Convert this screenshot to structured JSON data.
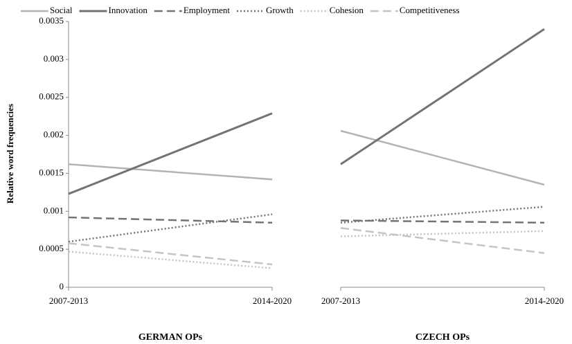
{
  "chart_data": {
    "type": "line",
    "ylabel": "Relative word frequencies",
    "ylim": [
      0,
      0.0035
    ],
    "yticks": [
      0,
      0.0005,
      0.001,
      0.0015,
      0.002,
      0.0025,
      0.003,
      0.0035
    ],
    "series": [
      {
        "name": "Social",
        "color": "#b3b3b3",
        "dash": "solid"
      },
      {
        "name": "Innovation",
        "color": "#737373",
        "dash": "solid"
      },
      {
        "name": "Employment",
        "color": "#737373",
        "dash": "dashed"
      },
      {
        "name": "Growth",
        "color": "#737373",
        "dash": "dotted"
      },
      {
        "name": "Cohesion",
        "color": "#c4c4c4",
        "dash": "dotted"
      },
      {
        "name": "Competitiveness",
        "color": "#c4c4c4",
        "dash": "dashed"
      }
    ],
    "panels": [
      {
        "title": "GERMAN OPs",
        "categories": [
          "2007-2013",
          "2014-2020"
        ],
        "values": [
          [
            0.00162,
            0.00142
          ],
          [
            0.00123,
            0.00229
          ],
          [
            0.00092,
            0.00085
          ],
          [
            0.0006,
            0.00096
          ],
          [
            0.00047,
            0.00025
          ],
          [
            0.00058,
            0.0003
          ]
        ]
      },
      {
        "title": "CZECH OPs",
        "categories": [
          "2007-2013",
          "2014-2020"
        ],
        "values": [
          [
            0.00206,
            0.00135
          ],
          [
            0.00162,
            0.0034
          ],
          [
            0.00088,
            0.00085
          ],
          [
            0.00085,
            0.00106
          ],
          [
            0.00067,
            0.00074
          ],
          [
            0.00078,
            0.00045
          ]
        ]
      }
    ]
  }
}
